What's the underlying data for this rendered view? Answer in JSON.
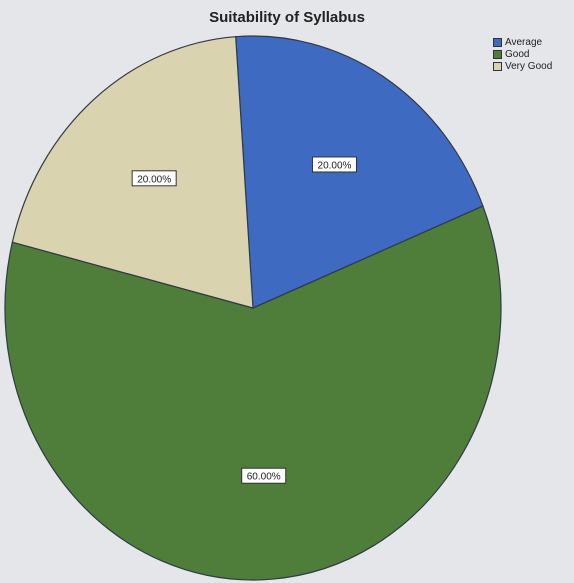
{
  "chart_data": {
    "type": "pie",
    "title": "Suitability of Syllabus",
    "categories": [
      "Average",
      "Good",
      "Very Good"
    ],
    "values": [
      20.0,
      60.0,
      20.0
    ],
    "data_labels": [
      "20.00%",
      "60.00%",
      "20.00%"
    ],
    "colors": [
      "#3e6ac2",
      "#4f7d3a",
      "#d9d3b0"
    ],
    "legend_position": "top-right",
    "start_angle_deg": -4
  }
}
